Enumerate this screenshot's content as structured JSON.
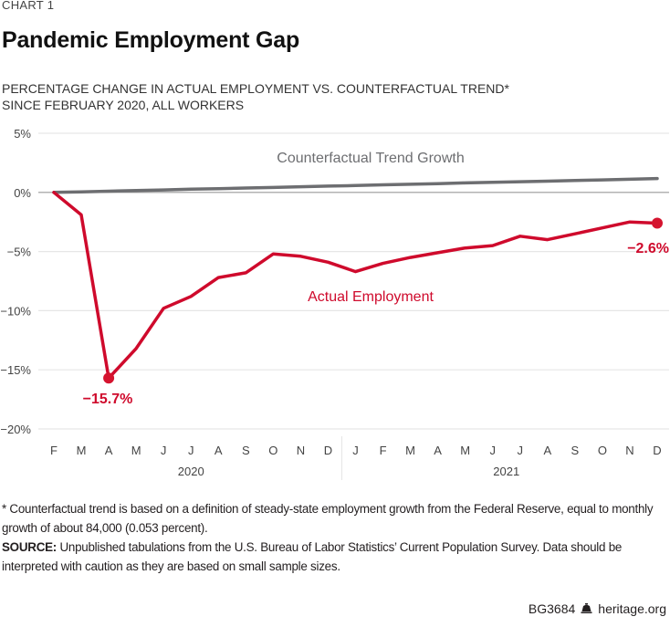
{
  "header": {
    "kicker": "CHART 1",
    "title": "Pandemic Employment Gap",
    "subtitle_line1": "PERCENTAGE CHANGE IN ACTUAL EMPLOYMENT VS. COUNTERFACTUAL TREND*",
    "subtitle_line2": "SINCE FEBRUARY 2020, ALL WORKERS"
  },
  "chart_data": {
    "type": "line",
    "title": "Pandemic Employment Gap",
    "subtitle": "PERCENTAGE CHANGE IN ACTUAL EMPLOYMENT VS. COUNTERFACTUAL TREND* SINCE FEBRUARY 2020, ALL WORKERS",
    "xlabel": "",
    "ylabel": "",
    "ylim": [
      -20,
      5
    ],
    "yticks": [
      5,
      0,
      -5,
      -10,
      -15,
      -20
    ],
    "ytick_labels": [
      "5%",
      "0%",
      "−5%",
      "−10%",
      "−15%",
      "−20%"
    ],
    "grid": true,
    "x_month_labels": [
      "F",
      "M",
      "A",
      "M",
      "J",
      "J",
      "A",
      "S",
      "O",
      "N",
      "D",
      "J",
      "F",
      "M",
      "A",
      "M",
      "J",
      "J",
      "A",
      "S",
      "O",
      "N",
      "D"
    ],
    "x_year_groups": [
      {
        "label": "2020",
        "start": 0,
        "end": 10
      },
      {
        "label": "2021",
        "start": 11,
        "end": 22
      }
    ],
    "x": [
      "2020-02",
      "2020-03",
      "2020-04",
      "2020-05",
      "2020-06",
      "2020-07",
      "2020-08",
      "2020-09",
      "2020-10",
      "2020-11",
      "2020-12",
      "2021-01",
      "2021-02",
      "2021-03",
      "2021-04",
      "2021-05",
      "2021-06",
      "2021-07",
      "2021-08",
      "2021-09",
      "2021-10",
      "2021-11",
      "2021-12"
    ],
    "series": [
      {
        "name": "Counterfactual Trend Growth",
        "color": "#6d6e71",
        "values": [
          0.0,
          0.05,
          0.1,
          0.16,
          0.21,
          0.27,
          0.32,
          0.37,
          0.42,
          0.48,
          0.53,
          0.58,
          0.64,
          0.69,
          0.74,
          0.8,
          0.85,
          0.9,
          0.95,
          1.01,
          1.06,
          1.11,
          1.17
        ]
      },
      {
        "name": "Actual Employment",
        "color": "#cf0a2c",
        "values": [
          0.0,
          -1.9,
          -15.7,
          -13.2,
          -9.8,
          -8.8,
          -7.2,
          -6.8,
          -5.2,
          -5.4,
          -5.9,
          -6.7,
          -6.0,
          -5.5,
          -5.1,
          -4.7,
          -4.5,
          -3.7,
          -4.0,
          -3.5,
          -3.0,
          -2.5,
          -2.6
        ]
      }
    ],
    "annotations": [
      {
        "text": "−15.7%",
        "series": "Actual Employment",
        "index": 2
      },
      {
        "text": "−2.6%",
        "series": "Actual Employment",
        "index": 22
      }
    ],
    "legend": "inline-labels"
  },
  "footer": {
    "note": "* Counterfactual trend is based on a definition of steady-state employment growth from the Federal Reserve, equal to monthly growth of about 84,000 (0.053 percent).",
    "source_label": "SOURCE:",
    "source_text": " Unpublished tabulations from the U.S. Bureau of Labor Statistics’ Current Population Survey. Data should be interpreted with caution as they are based on small sample sizes.",
    "code": "BG3684",
    "site": "heritage.org",
    "logo_icon": "liberty-bell-icon"
  },
  "colors": {
    "actual": "#cf0a2c",
    "trend": "#6d6e71",
    "grid": "#e6e6e6",
    "zero": "#9a9a9a"
  }
}
